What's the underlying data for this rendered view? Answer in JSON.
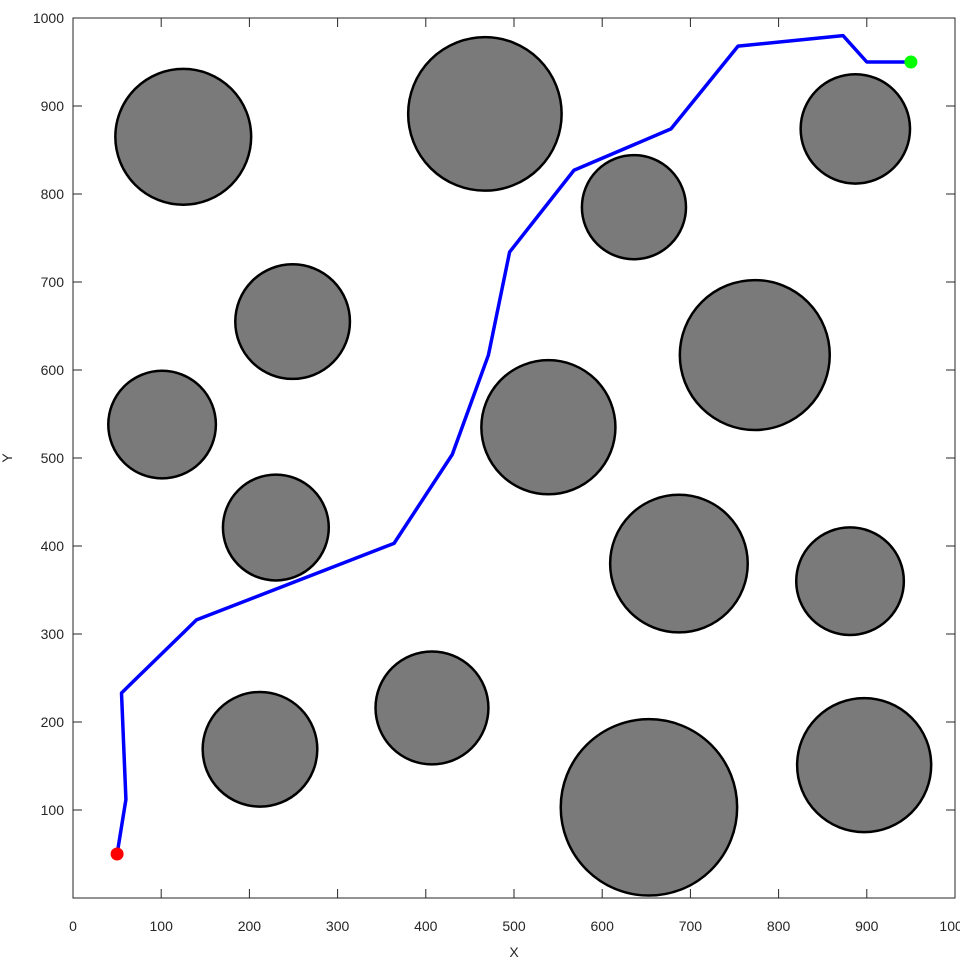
{
  "chart_data": {
    "type": "scatter",
    "title": "",
    "xlabel": "X",
    "ylabel": "Y",
    "xlim": [
      0,
      1000
    ],
    "ylim": [
      0,
      1000
    ],
    "grid": false,
    "xticks": [
      0,
      100,
      200,
      300,
      400,
      500,
      600,
      700,
      800,
      900,
      1000
    ],
    "yticks": [
      100,
      200,
      300,
      400,
      500,
      600,
      700,
      800,
      900,
      1000
    ],
    "colors": {
      "obstacle": "#7a7a7a",
      "obstacle_edge": "#000000",
      "path": "#0000ff",
      "start": "#ff0000",
      "goal": "#00ff00"
    },
    "obstacles": [
      {
        "x": 125,
        "y": 865,
        "r": 77
      },
      {
        "x": 467,
        "y": 891,
        "r": 87
      },
      {
        "x": 636,
        "y": 785,
        "r": 59
      },
      {
        "x": 887,
        "y": 874,
        "r": 62
      },
      {
        "x": 249,
        "y": 655,
        "r": 65
      },
      {
        "x": 101,
        "y": 538,
        "r": 61
      },
      {
        "x": 539,
        "y": 535,
        "r": 76
      },
      {
        "x": 773,
        "y": 617,
        "r": 85
      },
      {
        "x": 230,
        "y": 421,
        "r": 60
      },
      {
        "x": 687,
        "y": 380,
        "r": 78
      },
      {
        "x": 881,
        "y": 360,
        "r": 61
      },
      {
        "x": 407,
        "y": 216,
        "r": 64
      },
      {
        "x": 212,
        "y": 169,
        "r": 65
      },
      {
        "x": 653,
        "y": 103,
        "r": 100
      },
      {
        "x": 897,
        "y": 151,
        "r": 76
      }
    ],
    "path": [
      [
        50,
        50
      ],
      [
        60,
        112
      ],
      [
        55,
        233
      ],
      [
        140,
        316
      ],
      [
        364,
        403
      ],
      [
        430,
        504
      ],
      [
        471,
        617
      ],
      [
        495,
        734
      ],
      [
        568,
        827
      ],
      [
        678,
        874
      ],
      [
        754,
        968
      ],
      [
        873,
        980
      ],
      [
        900,
        950
      ],
      [
        950,
        950
      ]
    ],
    "start": [
      50,
      50
    ],
    "goal": [
      950,
      950
    ]
  }
}
